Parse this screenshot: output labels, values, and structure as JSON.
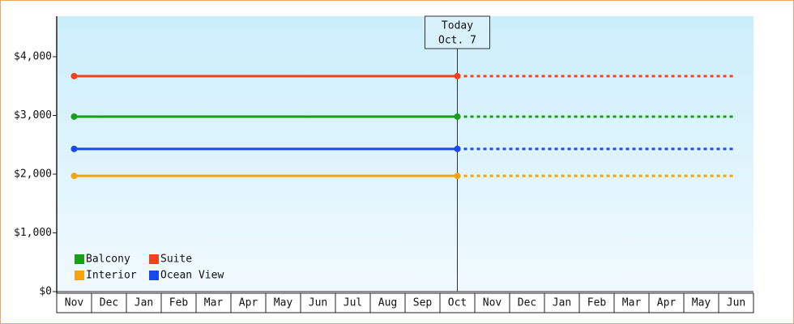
{
  "chart_data": {
    "type": "line",
    "categories": [
      "Nov",
      "Dec",
      "Jan",
      "Feb",
      "Mar",
      "Apr",
      "May",
      "Jun",
      "Jul",
      "Aug",
      "Sep",
      "Oct",
      "Nov",
      "Dec",
      "Jan",
      "Feb",
      "Mar",
      "Apr",
      "May",
      "Jun"
    ],
    "series": [
      {
        "name": "Balcony",
        "color": "#16a016",
        "values": [
          2980,
          2980,
          2980,
          2980,
          2980,
          2980,
          2980,
          2980,
          2980,
          2980,
          2980,
          2980,
          null,
          null,
          null,
          null,
          null,
          null,
          null,
          null
        ],
        "forecast": [
          null,
          null,
          null,
          null,
          null,
          null,
          null,
          null,
          null,
          null,
          null,
          2980,
          2980,
          2980,
          2980,
          2980,
          2980,
          2980,
          2980,
          2980
        ]
      },
      {
        "name": "Suite",
        "color": "#f2421a",
        "values": [
          3670,
          3670,
          3670,
          3670,
          3670,
          3670,
          3670,
          3670,
          3670,
          3670,
          3670,
          3670,
          null,
          null,
          null,
          null,
          null,
          null,
          null,
          null
        ],
        "forecast": [
          null,
          null,
          null,
          null,
          null,
          null,
          null,
          null,
          null,
          null,
          null,
          3670,
          3670,
          3670,
          3670,
          3670,
          3670,
          3670,
          3670,
          3670
        ]
      },
      {
        "name": "Interior",
        "color": "#f5a30f",
        "values": [
          1970,
          1970,
          1970,
          1970,
          1970,
          1970,
          1970,
          1970,
          1970,
          1970,
          1970,
          1970,
          null,
          null,
          null,
          null,
          null,
          null,
          null,
          null
        ],
        "forecast": [
          null,
          null,
          null,
          null,
          null,
          null,
          null,
          null,
          null,
          null,
          null,
          1970,
          1970,
          1970,
          1970,
          1970,
          1970,
          1970,
          1970,
          1970
        ]
      },
      {
        "name": "Ocean View",
        "color": "#1848f0",
        "values": [
          2430,
          2430,
          2430,
          2430,
          2430,
          2430,
          2430,
          2430,
          2430,
          2430,
          2430,
          2430,
          null,
          null,
          null,
          null,
          null,
          null,
          null,
          null
        ],
        "forecast": [
          null,
          null,
          null,
          null,
          null,
          null,
          null,
          null,
          null,
          null,
          null,
          2430,
          2430,
          2430,
          2430,
          2430,
          2430,
          2430,
          2430,
          2430
        ]
      }
    ],
    "annotation": [
      "Today",
      "Oct. 7"
    ],
    "ylim": [
      0,
      4690
    ],
    "yticks": [
      {
        "value": 0,
        "label": "$0"
      },
      {
        "value": 1000,
        "label": "$1,000"
      },
      {
        "value": 2000,
        "label": "$2,000"
      },
      {
        "value": 3000,
        "label": "$3,000"
      },
      {
        "value": 4000,
        "label": "$4,000"
      }
    ],
    "legend": "lower left"
  }
}
